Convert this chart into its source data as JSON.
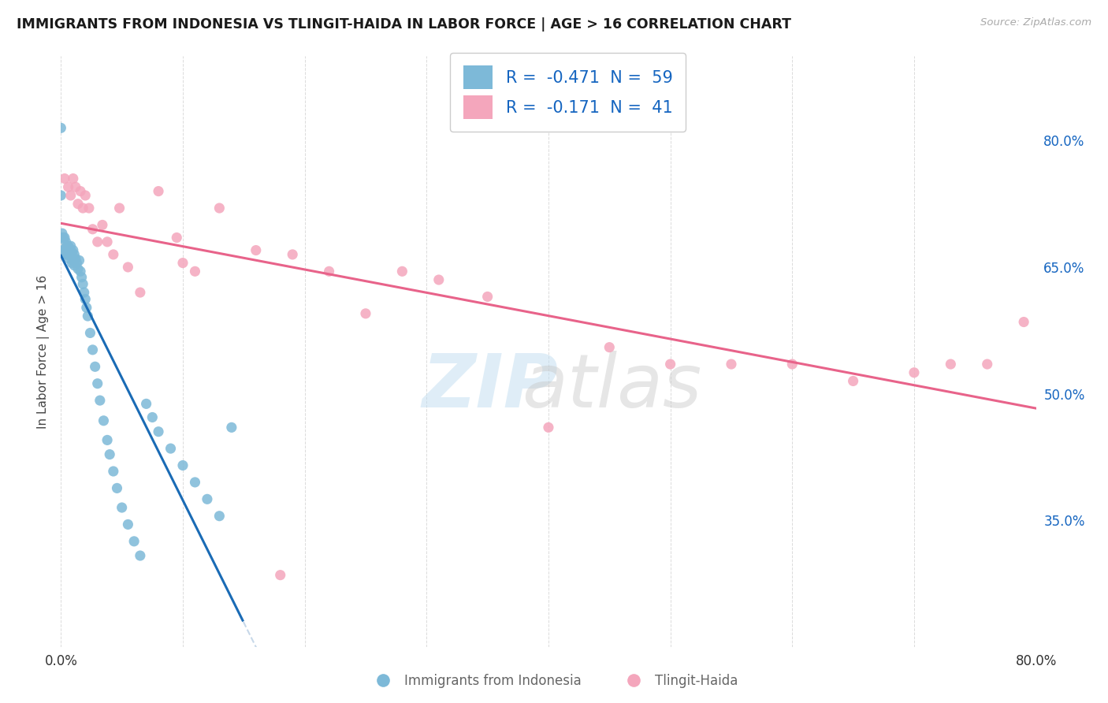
{
  "title": "IMMIGRANTS FROM INDONESIA VS TLINGIT-HAIDA IN LABOR FORCE | AGE > 16 CORRELATION CHART",
  "source_text": "Source: ZipAtlas.com",
  "ylabel": "In Labor Force | Age > 16",
  "xlim": [
    0.0,
    0.8
  ],
  "ylim": [
    0.2,
    0.9
  ],
  "x_ticks": [
    0.0,
    0.1,
    0.2,
    0.3,
    0.4,
    0.5,
    0.6,
    0.7,
    0.8
  ],
  "y_ticks_right": [
    0.35,
    0.5,
    0.65,
    0.8
  ],
  "y_tick_labels_right": [
    "35.0%",
    "50.0%",
    "65.0%",
    "80.0%"
  ],
  "r1": "-0.471",
  "n1": "59",
  "r2": "-0.171",
  "n2": "41",
  "blue_color": "#7db9d8",
  "pink_color": "#f4a6bc",
  "blue_line_color": "#1a6bb5",
  "pink_line_color": "#e8638a",
  "blue_label": "Immigrants from Indonesia",
  "pink_label": "Tlingit-Haida",
  "grid_color": "#cccccc",
  "title_color": "#1a1a1a",
  "text_color": "#1565c0",
  "right_axis_color": "#1565c0",
  "blue_scatter_x": [
    0.0,
    0.0,
    0.0,
    0.001,
    0.001,
    0.002,
    0.002,
    0.003,
    0.003,
    0.004,
    0.004,
    0.005,
    0.005,
    0.006,
    0.006,
    0.007,
    0.007,
    0.008,
    0.008,
    0.009,
    0.009,
    0.01,
    0.01,
    0.011,
    0.011,
    0.012,
    0.013,
    0.014,
    0.015,
    0.016,
    0.017,
    0.018,
    0.019,
    0.02,
    0.021,
    0.022,
    0.024,
    0.026,
    0.028,
    0.03,
    0.032,
    0.035,
    0.038,
    0.04,
    0.043,
    0.046,
    0.05,
    0.055,
    0.06,
    0.065,
    0.07,
    0.075,
    0.08,
    0.09,
    0.1,
    0.11,
    0.12,
    0.13,
    0.14
  ],
  "blue_scatter_y": [
    0.815,
    0.735,
    0.685,
    0.69,
    0.67,
    0.685,
    0.67,
    0.685,
    0.67,
    0.68,
    0.665,
    0.675,
    0.665,
    0.675,
    0.665,
    0.672,
    0.66,
    0.675,
    0.663,
    0.668,
    0.655,
    0.67,
    0.658,
    0.665,
    0.652,
    0.66,
    0.655,
    0.648,
    0.658,
    0.645,
    0.638,
    0.63,
    0.62,
    0.612,
    0.602,
    0.592,
    0.572,
    0.552,
    0.532,
    0.512,
    0.492,
    0.468,
    0.445,
    0.428,
    0.408,
    0.388,
    0.365,
    0.345,
    0.325,
    0.308,
    0.488,
    0.472,
    0.455,
    0.435,
    0.415,
    0.395,
    0.375,
    0.355,
    0.46
  ],
  "pink_scatter_x": [
    0.003,
    0.006,
    0.008,
    0.01,
    0.012,
    0.014,
    0.016,
    0.018,
    0.02,
    0.023,
    0.026,
    0.03,
    0.034,
    0.038,
    0.043,
    0.048,
    0.055,
    0.065,
    0.08,
    0.095,
    0.11,
    0.13,
    0.16,
    0.19,
    0.22,
    0.25,
    0.28,
    0.31,
    0.35,
    0.4,
    0.45,
    0.5,
    0.55,
    0.6,
    0.65,
    0.7,
    0.73,
    0.76,
    0.79,
    0.1,
    0.18
  ],
  "pink_scatter_y": [
    0.755,
    0.745,
    0.735,
    0.755,
    0.745,
    0.725,
    0.74,
    0.72,
    0.735,
    0.72,
    0.695,
    0.68,
    0.7,
    0.68,
    0.665,
    0.72,
    0.65,
    0.62,
    0.74,
    0.685,
    0.645,
    0.72,
    0.67,
    0.665,
    0.645,
    0.595,
    0.645,
    0.635,
    0.615,
    0.46,
    0.555,
    0.535,
    0.535,
    0.535,
    0.515,
    0.525,
    0.535,
    0.535,
    0.585,
    0.655,
    0.285
  ]
}
